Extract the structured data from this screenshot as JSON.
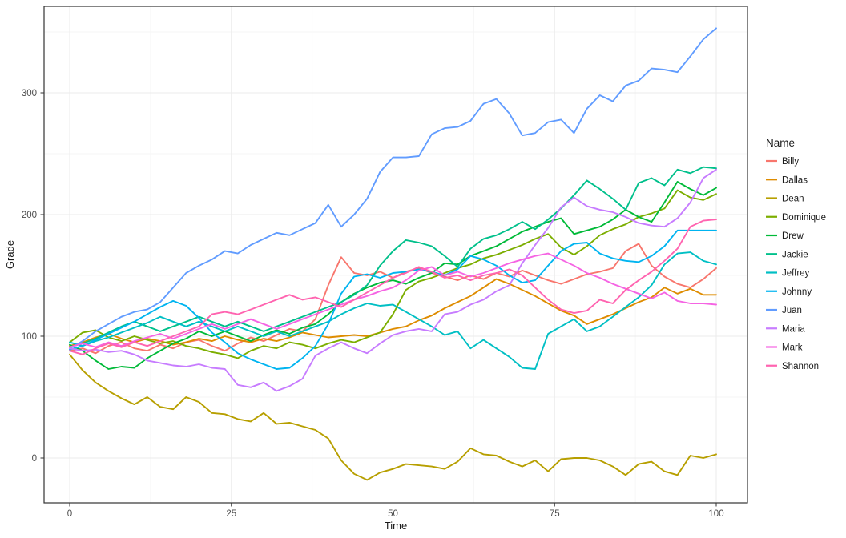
{
  "chart_data": {
    "type": "line",
    "title": "",
    "xlabel": "Time",
    "ylabel": "Grade",
    "legend_title": "Name",
    "legend_position": "right",
    "grid": true,
    "x_ticks": [
      0,
      25,
      50,
      75,
      100
    ],
    "y_ticks": [
      0,
      100,
      200,
      300
    ],
    "x_minor": [
      12.5,
      37.5,
      62.5,
      87.5
    ],
    "y_minor": [
      50,
      150,
      250,
      350
    ],
    "xlim": [
      -4,
      104.8
    ],
    "ylim": [
      -37,
      371
    ],
    "x_step": 2,
    "colors": {
      "panel_border": "#333333",
      "grid_major": "#ebebeb",
      "grid_minor": "#f6f6f6",
      "tick": "#333333",
      "tick_text": "#4d4d4d",
      "text": "#1a1a1a",
      "background": "#ffffff"
    },
    "series": [
      {
        "name": "Billy",
        "color": "#F8766D",
        "values": [
          88,
          90,
          86,
          92,
          95,
          90,
          88,
          93,
          90,
          95,
          97,
          92,
          88,
          94,
          99,
          96,
          101,
          106,
          104,
          114,
          142,
          165,
          152,
          150,
          153,
          148,
          153,
          156,
          152,
          149,
          146,
          150,
          147,
          152,
          149,
          154,
          150,
          146,
          143,
          147,
          151,
          153,
          156,
          170,
          176,
          158,
          149,
          143,
          140,
          147,
          156
        ]
      },
      {
        "name": "Dallas",
        "color": "#DE8C00",
        "values": [
          92,
          95,
          99,
          102,
          98,
          95,
          98,
          96,
          93,
          95,
          98,
          96,
          100,
          97,
          95,
          98,
          96,
          99,
          103,
          101,
          99,
          100,
          101,
          100,
          103,
          106,
          108,
          113,
          117,
          123,
          128,
          133,
          140,
          147,
          143,
          138,
          133,
          127,
          121,
          117,
          110,
          114,
          118,
          123,
          128,
          132,
          140,
          135,
          139,
          134,
          134
        ]
      },
      {
        "name": "Dean",
        "color": "#B79F00",
        "values": [
          85,
          72,
          62,
          55,
          49,
          44,
          50,
          42,
          40,
          50,
          46,
          37,
          36,
          32,
          30,
          37,
          28,
          29,
          26,
          23,
          16,
          -2,
          -13,
          -18,
          -12,
          -9,
          -5,
          -6,
          -7,
          -9,
          -3,
          8,
          3,
          2,
          -3,
          -7,
          -2,
          -11,
          -1,
          0,
          0,
          -2,
          -7,
          -14,
          -5,
          -3,
          -11,
          -14,
          2,
          0,
          3
        ]
      },
      {
        "name": "Dominique",
        "color": "#7CAE00",
        "values": [
          95,
          103,
          105,
          99,
          96,
          100,
          97,
          94,
          96,
          92,
          90,
          87,
          85,
          82,
          88,
          92,
          90,
          95,
          93,
          90,
          94,
          97,
          95,
          99,
          103,
          118,
          138,
          145,
          148,
          152,
          156,
          159,
          164,
          167,
          171,
          175,
          180,
          184,
          173,
          167,
          174,
          183,
          188,
          192,
          198,
          201,
          205,
          220,
          214,
          212,
          217
        ]
      },
      {
        "name": "Drew",
        "color": "#00BA38",
        "values": [
          93,
          88,
          80,
          73,
          75,
          74,
          82,
          88,
          94,
          98,
          104,
          100,
          104,
          100,
          96,
          101,
          105,
          102,
          107,
          110,
          118,
          128,
          135,
          140,
          144,
          146,
          143,
          148,
          152,
          160,
          159,
          166,
          170,
          174,
          180,
          186,
          190,
          194,
          197,
          184,
          187,
          190,
          196,
          204,
          198,
          194,
          210,
          227,
          221,
          216,
          222
        ]
      },
      {
        "name": "Jackie",
        "color": "#00C08B",
        "values": [
          91,
          94,
          98,
          103,
          108,
          112,
          108,
          104,
          108,
          112,
          116,
          112,
          108,
          112,
          108,
          104,
          108,
          112,
          116,
          120,
          124,
          128,
          134,
          142,
          158,
          170,
          179,
          177,
          174,
          166,
          157,
          172,
          180,
          183,
          188,
          194,
          188,
          196,
          205,
          216,
          228,
          221,
          213,
          204,
          226,
          230,
          224,
          237,
          234,
          239,
          238
        ]
      },
      {
        "name": "Jeffrey",
        "color": "#00BFC4",
        "values": [
          95,
          92,
          96,
          99,
          103,
          107,
          111,
          116,
          112,
          108,
          112,
          108,
          104,
          108,
          104,
          100,
          104,
          100,
          104,
          108,
          112,
          118,
          123,
          127,
          125,
          126,
          120,
          114,
          108,
          101,
          104,
          90,
          97,
          90,
          83,
          74,
          73,
          102,
          108,
          114,
          104,
          108,
          116,
          124,
          132,
          142,
          159,
          168,
          169,
          162,
          159
        ]
      },
      {
        "name": "Johnny",
        "color": "#00B4F0",
        "values": [
          89,
          92,
          97,
          102,
          107,
          112,
          118,
          124,
          129,
          125,
          115,
          103,
          95,
          86,
          81,
          77,
          73,
          74,
          82,
          92,
          110,
          135,
          149,
          151,
          148,
          152,
          153,
          155,
          153,
          150,
          155,
          166,
          163,
          158,
          150,
          144,
          146,
          158,
          170,
          176,
          177,
          168,
          164,
          162,
          161,
          166,
          174,
          187,
          187,
          187,
          187
        ]
      },
      {
        "name": "Juan",
        "color": "#619CFF",
        "values": [
          90,
          96,
          104,
          110,
          116,
          120,
          122,
          128,
          140,
          152,
          158,
          163,
          170,
          168,
          175,
          180,
          185,
          183,
          188,
          193,
          208,
          190,
          200,
          213,
          235,
          247,
          247,
          248,
          266,
          271,
          272,
          277,
          291,
          295,
          283,
          265,
          267,
          276,
          278,
          267,
          287,
          298,
          293,
          306,
          310,
          320,
          319,
          317,
          330,
          344,
          353
        ]
      },
      {
        "name": "Maria",
        "color": "#C77CFF",
        "values": [
          90,
          88,
          89,
          87,
          88,
          85,
          80,
          78,
          76,
          75,
          77,
          74,
          73,
          60,
          58,
          62,
          55,
          59,
          65,
          84,
          90,
          95,
          90,
          86,
          94,
          101,
          104,
          106,
          104,
          118,
          120,
          126,
          130,
          137,
          142,
          160,
          175,
          189,
          206,
          214,
          207,
          204,
          202,
          198,
          193,
          191,
          190,
          197,
          210,
          230,
          237
        ]
      },
      {
        "name": "Mark",
        "color": "#F564E3",
        "values": [
          91,
          94,
          91,
          95,
          92,
          96,
          99,
          102,
          98,
          102,
          106,
          110,
          106,
          110,
          114,
          110,
          106,
          110,
          114,
          118,
          122,
          126,
          130,
          133,
          137,
          140,
          146,
          154,
          157,
          150,
          153,
          149,
          152,
          156,
          160,
          163,
          166,
          168,
          163,
          158,
          152,
          148,
          143,
          139,
          135,
          131,
          136,
          129,
          127,
          127,
          126
        ]
      },
      {
        "name": "Shannon",
        "color": "#FF64B0",
        "values": [
          88,
          85,
          90,
          94,
          91,
          95,
          92,
          96,
          100,
          104,
          108,
          118,
          120,
          118,
          122,
          126,
          130,
          134,
          130,
          132,
          128,
          124,
          130,
          136,
          142,
          148,
          152,
          157,
          153,
          148,
          150,
          146,
          150,
          152,
          155,
          150,
          140,
          130,
          122,
          119,
          121,
          130,
          127,
          138,
          146,
          153,
          162,
          172,
          190,
          195,
          196
        ]
      }
    ]
  }
}
